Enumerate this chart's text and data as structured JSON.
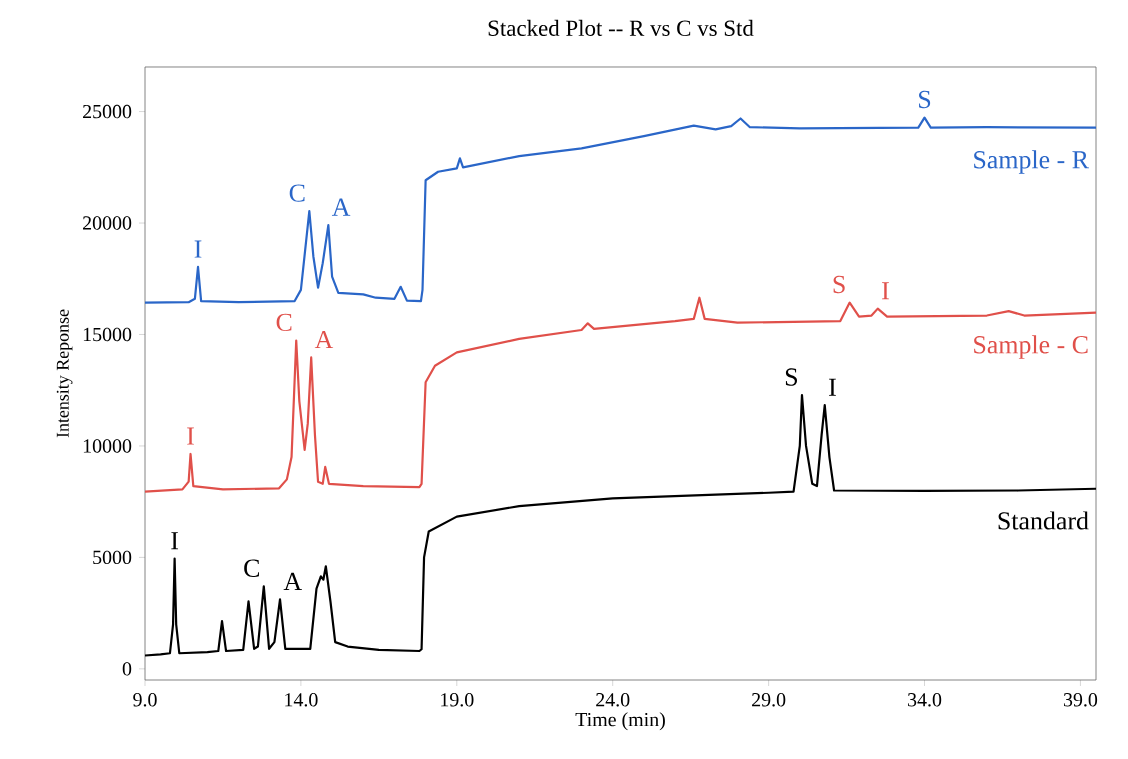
{
  "chart_data": {
    "type": "line",
    "title": "Stacked Plot -- R vs C vs Std",
    "xlabel": "Time (min)",
    "ylabel": "Intensity Reponse",
    "xlim": [
      9,
      39.5
    ],
    "ylim": [
      -500,
      27000
    ],
    "xticks": [
      {
        "value": 9,
        "label": "9.0"
      },
      {
        "value": 14,
        "label": "14.0"
      },
      {
        "value": 19,
        "label": "19.0"
      },
      {
        "value": 24,
        "label": "24.0"
      },
      {
        "value": 29,
        "label": "29.0"
      },
      {
        "value": 34,
        "label": "34.0"
      },
      {
        "value": 39,
        "label": "39.0"
      }
    ],
    "yticks": [
      0,
      5000,
      10000,
      15000,
      20000,
      25000
    ],
    "line_style": "solid",
    "grid": false,
    "series": [
      {
        "name": "Sample - R",
        "color": "#2a66c8",
        "x": [
          9.0,
          10.4,
          10.6,
          10.7,
          10.8,
          12.0,
          13.8,
          14.0,
          14.27,
          14.4,
          14.55,
          14.7,
          14.88,
          15.0,
          15.2,
          16.0,
          16.4,
          17.0,
          17.2,
          17.4,
          17.85,
          17.9,
          18.0,
          18.4,
          19.0,
          19.1,
          19.2,
          21.0,
          23.0,
          25.0,
          26.6,
          27.3,
          27.8,
          28.1,
          28.4,
          30.0,
          33.8,
          34.0,
          34.2,
          36.0,
          39.5
        ],
        "values": [
          16430,
          16450,
          16600,
          18030,
          16500,
          16450,
          16500,
          17000,
          20530,
          18500,
          17100,
          18200,
          19910,
          17600,
          16870,
          16800,
          16650,
          16600,
          17140,
          16520,
          16500,
          17000,
          21920,
          22300,
          22450,
          22900,
          22500,
          23000,
          23350,
          23900,
          24370,
          24200,
          24350,
          24690,
          24300,
          24250,
          24280,
          24730,
          24280,
          24300,
          24280
        ]
      },
      {
        "name": "Sample - C",
        "color": "#e0504a",
        "x": [
          9.0,
          10.2,
          10.4,
          10.46,
          10.55,
          11.5,
          13.3,
          13.55,
          13.7,
          13.85,
          13.95,
          14.12,
          14.22,
          14.33,
          14.45,
          14.55,
          14.7,
          14.78,
          14.9,
          16.0,
          17.8,
          17.87,
          18.0,
          18.3,
          19.0,
          21.0,
          23.0,
          23.2,
          23.4,
          26.0,
          26.6,
          26.78,
          26.95,
          28.0,
          31.3,
          31.6,
          31.9,
          32.3,
          32.5,
          32.8,
          36.0,
          36.7,
          37.2,
          39.5
        ],
        "values": [
          7950,
          8050,
          8400,
          9640,
          8200,
          8050,
          8100,
          8500,
          9500,
          14730,
          12000,
          9820,
          11000,
          13970,
          10500,
          8390,
          8300,
          9060,
          8300,
          8200,
          8150,
          8300,
          12860,
          13600,
          14200,
          14800,
          15200,
          15500,
          15250,
          15600,
          15700,
          16650,
          15700,
          15530,
          15600,
          16430,
          15800,
          15850,
          16160,
          15800,
          15850,
          16050,
          15850,
          15980
        ]
      },
      {
        "name": "Standard",
        "color": "#000000",
        "x": [
          9.0,
          9.5,
          9.8,
          9.9,
          9.95,
          10.0,
          10.1,
          11.0,
          11.35,
          11.47,
          11.6,
          12.15,
          12.32,
          12.5,
          12.62,
          12.81,
          12.98,
          13.15,
          13.33,
          13.5,
          14.3,
          14.5,
          14.64,
          14.72,
          14.8,
          14.95,
          15.1,
          15.5,
          16.5,
          17.8,
          17.87,
          17.95,
          18.1,
          19.0,
          21.0,
          24.0,
          29.0,
          29.8,
          30.0,
          30.07,
          30.2,
          30.4,
          30.55,
          30.7,
          30.8,
          30.95,
          31.1,
          34.0,
          37.0,
          39.5
        ],
        "values": [
          600,
          650,
          700,
          2000,
          4950,
          2000,
          700,
          750,
          800,
          2140,
          800,
          850,
          3030,
          900,
          1000,
          3700,
          900,
          1200,
          3120,
          900,
          900,
          3600,
          4150,
          4000,
          4600,
          3000,
          1200,
          1000,
          850,
          800,
          880,
          5000,
          6160,
          6830,
          7300,
          7650,
          7900,
          7950,
          10000,
          12280,
          10000,
          8300,
          8200,
          10500,
          11830,
          9500,
          8000,
          7980,
          8000,
          8080
        ]
      }
    ],
    "annotations": [
      {
        "text": "I",
        "x": 10.7,
        "y": 18030
      },
      {
        "text": "C",
        "x": 14.27,
        "y": 20530
      },
      {
        "text": "A",
        "x": 14.88,
        "y": 19910
      },
      {
        "text": "S",
        "x": 34.0,
        "y": 24730
      },
      {
        "text": "I",
        "x": 10.46,
        "y": 9640
      },
      {
        "text": "C",
        "x": 13.85,
        "y": 14730
      },
      {
        "text": "A",
        "x": 14.33,
        "y": 13970
      },
      {
        "text": "S",
        "x": 31.6,
        "y": 16430
      },
      {
        "text": "I",
        "x": 32.5,
        "y": 16160
      },
      {
        "text": "I",
        "x": 9.95,
        "y": 4950
      },
      {
        "text": "C",
        "x": 12.81,
        "y": 3700
      },
      {
        "text": "A",
        "x": 13.33,
        "y": 3120
      },
      {
        "text": "S",
        "x": 30.07,
        "y": 12280
      },
      {
        "text": "I",
        "x": 30.8,
        "y": 11830
      }
    ]
  }
}
